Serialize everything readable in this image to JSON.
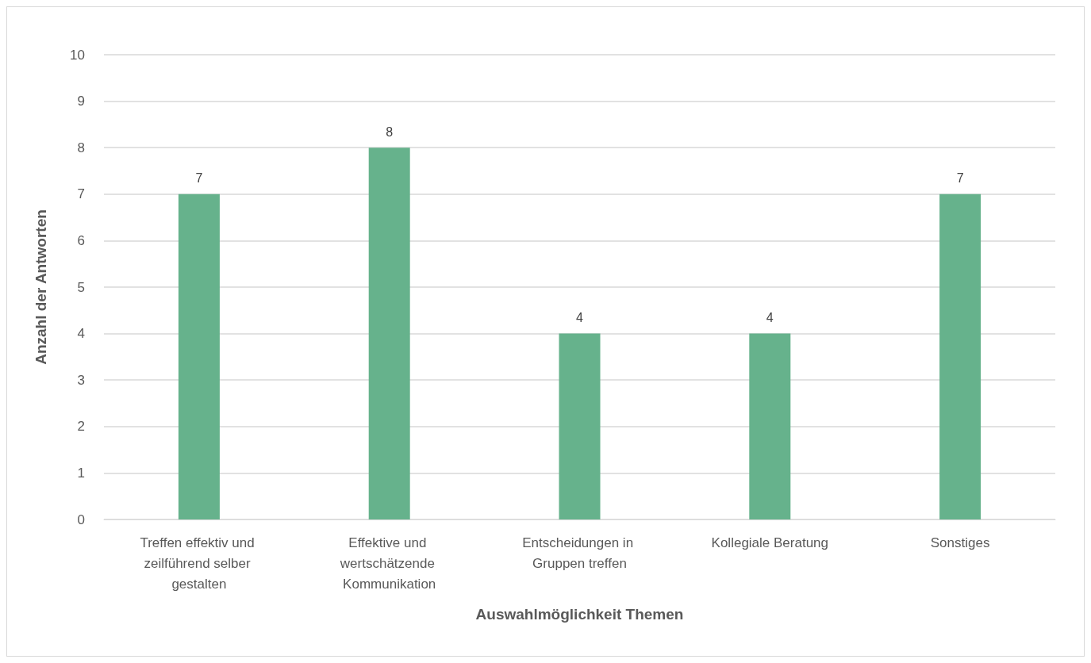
{
  "chart_data": {
    "type": "bar",
    "xlabel": "Auswahlmöglichkeit Themen",
    "ylabel": "Anzahl der Antworten",
    "categories": [
      "Treffen effektiv und zeilführend selber gestalten",
      "Effektive und wertschätzende Kommunikation",
      "Entscheidungen in Gruppen treffen",
      "Kollegiale Beratung",
      "Sonstiges"
    ],
    "values": [
      7,
      8,
      4,
      4,
      7
    ],
    "color": "#66b28c",
    "ylim": [
      0,
      10
    ],
    "yticks": [
      0,
      1,
      2,
      3,
      4,
      5,
      6,
      7,
      8,
      9,
      10
    ],
    "grid": "y",
    "data_labels": true
  }
}
